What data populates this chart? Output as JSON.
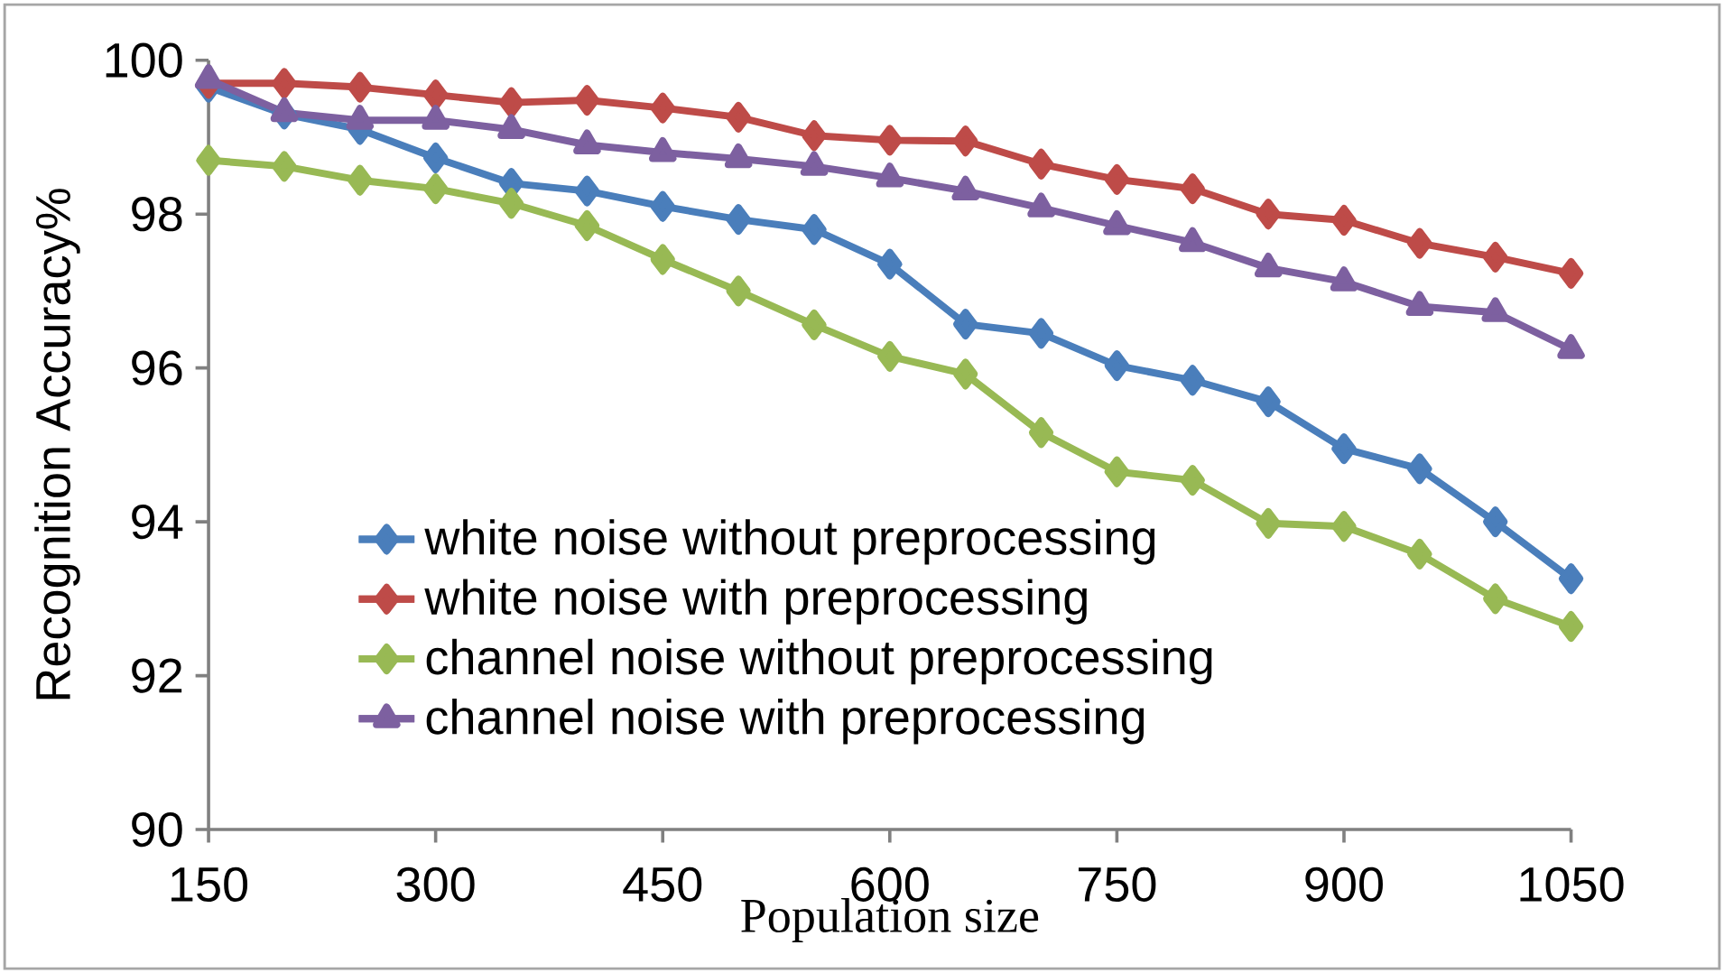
{
  "chart_data": {
    "type": "line",
    "xlabel": "Population size",
    "ylabel": "Recognition Accuracy%",
    "x": [
      150,
      200,
      250,
      300,
      350,
      400,
      450,
      500,
      550,
      600,
      650,
      700,
      750,
      800,
      850,
      900,
      950,
      1000,
      1050
    ],
    "xlim": [
      150,
      1050
    ],
    "xticks": [
      150,
      300,
      450,
      600,
      750,
      900,
      1050
    ],
    "ylim": [
      90,
      100
    ],
    "yticks": [
      90,
      92,
      94,
      96,
      98,
      100
    ],
    "grid": false,
    "legend": "bottom left",
    "series": [
      {
        "name": "white noise without preprocessing",
        "color": "#4a7ebb",
        "marker": "diamond",
        "values": [
          99.65,
          99.3,
          99.1,
          98.73,
          98.4,
          98.3,
          98.1,
          97.93,
          97.8,
          97.35,
          96.57,
          96.45,
          96.03,
          95.84,
          95.56,
          94.95,
          94.69,
          94.0,
          93.26
        ]
      },
      {
        "name": "white noise with preprocessing",
        "color": "#be4b48",
        "marker": "diamond",
        "values": [
          99.7,
          99.7,
          99.65,
          99.55,
          99.45,
          99.48,
          99.38,
          99.26,
          99.02,
          98.96,
          98.95,
          98.65,
          98.45,
          98.33,
          98.0,
          97.92,
          97.62,
          97.44,
          97.23
        ]
      },
      {
        "name": "channel noise without preprocessing",
        "color": "#98b954",
        "marker": "diamond",
        "values": [
          98.7,
          98.62,
          98.44,
          98.33,
          98.14,
          97.85,
          97.41,
          97.0,
          96.56,
          96.15,
          95.92,
          95.16,
          94.65,
          94.54,
          93.98,
          93.94,
          93.58,
          93.0,
          92.64
        ]
      },
      {
        "name": "channel noise with preprocessing",
        "color": "#7d60a0",
        "marker": "triangle",
        "values": [
          99.75,
          99.32,
          99.22,
          99.22,
          99.1,
          98.9,
          98.8,
          98.72,
          98.62,
          98.47,
          98.3,
          98.08,
          97.85,
          97.63,
          97.3,
          97.12,
          96.8,
          96.72,
          96.24
        ]
      }
    ]
  }
}
